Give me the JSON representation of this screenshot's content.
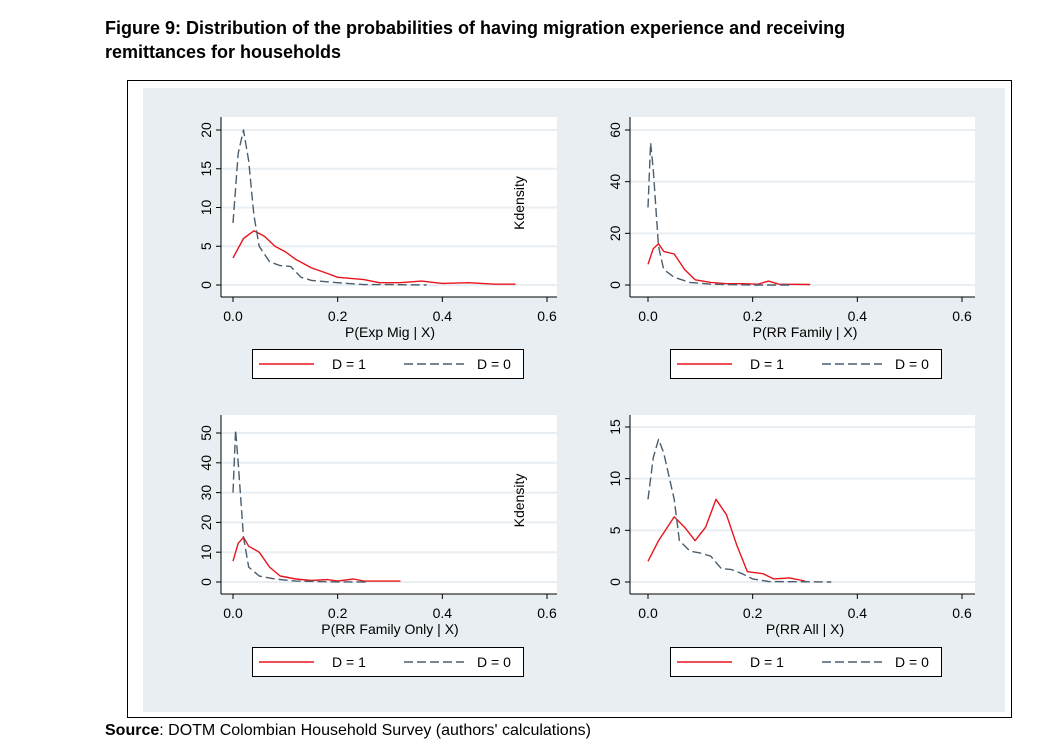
{
  "title_line1": "Figure 9: Distribution of the probabilities of having migration experience and receiving",
  "title_line2": "remittances for households",
  "source_label": "Source",
  "source_text": ": DOTM Colombian Household Survey (authors' calculations)",
  "colors": {
    "d1": "#e8141c",
    "d0": "#4a5e6e",
    "bg": "#e8eef1"
  },
  "chart_data": [
    {
      "type": "line",
      "xlabel": "P(Exp Mig | X)",
      "ylabel": "Kdensity",
      "xlim": [
        0,
        0.6
      ],
      "ylim": [
        0,
        20
      ],
      "xticks": [
        "0.0",
        "0.2",
        "0.4",
        "0.6"
      ],
      "yticks": [
        "0",
        "5",
        "10",
        "15",
        "20"
      ],
      "legend": [
        "D = 1",
        "D = 0"
      ],
      "series": [
        {
          "name": "D = 1",
          "points": [
            [
              0,
              3.5
            ],
            [
              0.02,
              6
            ],
            [
              0.04,
              7
            ],
            [
              0.06,
              6.3
            ],
            [
              0.08,
              5
            ],
            [
              0.1,
              4.3
            ],
            [
              0.12,
              3.3
            ],
            [
              0.15,
              2.2
            ],
            [
              0.18,
              1.5
            ],
            [
              0.2,
              1
            ],
            [
              0.25,
              0.7
            ],
            [
              0.28,
              0.3
            ],
            [
              0.32,
              0.3
            ],
            [
              0.36,
              0.5
            ],
            [
              0.4,
              0.2
            ],
            [
              0.45,
              0.3
            ],
            [
              0.5,
              0.1
            ],
            [
              0.54,
              0.1
            ]
          ]
        },
        {
          "name": "D = 0",
          "points": [
            [
              0,
              8
            ],
            [
              0.01,
              17
            ],
            [
              0.02,
              20
            ],
            [
              0.03,
              16
            ],
            [
              0.04,
              9
            ],
            [
              0.05,
              5
            ],
            [
              0.07,
              3
            ],
            [
              0.09,
              2.5
            ],
            [
              0.11,
              2.4
            ],
            [
              0.13,
              1
            ],
            [
              0.15,
              0.6
            ],
            [
              0.2,
              0.3
            ],
            [
              0.25,
              0.05
            ],
            [
              0.3,
              0.05
            ],
            [
              0.37,
              0
            ]
          ]
        }
      ]
    },
    {
      "type": "line",
      "xlabel": "P(RR Family | X)",
      "ylabel": "",
      "xlim": [
        0,
        0.6
      ],
      "ylim": [
        0,
        60
      ],
      "xticks": [
        "0.0",
        "0.2",
        "0.4",
        "0.6"
      ],
      "yticks": [
        "0",
        "20",
        "40",
        "60"
      ],
      "legend": [
        "D = 1",
        "D = 0"
      ],
      "series": [
        {
          "name": "D = 1",
          "points": [
            [
              0,
              8
            ],
            [
              0.01,
              14
            ],
            [
              0.02,
              16
            ],
            [
              0.03,
              13
            ],
            [
              0.05,
              12
            ],
            [
              0.07,
              6
            ],
            [
              0.09,
              2
            ],
            [
              0.12,
              1
            ],
            [
              0.15,
              0.5
            ],
            [
              0.18,
              0.5
            ],
            [
              0.21,
              0.3
            ],
            [
              0.23,
              1.5
            ],
            [
              0.25,
              0.3
            ],
            [
              0.31,
              0.2
            ]
          ]
        },
        {
          "name": "D = 0",
          "points": [
            [
              0,
              30
            ],
            [
              0.005,
              55
            ],
            [
              0.01,
              45
            ],
            [
              0.02,
              15
            ],
            [
              0.03,
              6
            ],
            [
              0.05,
              3
            ],
            [
              0.08,
              1
            ],
            [
              0.12,
              0.3
            ],
            [
              0.2,
              0
            ],
            [
              0.27,
              0
            ]
          ]
        }
      ]
    },
    {
      "type": "line",
      "xlabel": "P(RR Family Only | X)",
      "ylabel": "Kdensity",
      "xlim": [
        0,
        0.6
      ],
      "ylim": [
        0,
        50
      ],
      "xticks": [
        "0.0",
        "0.2",
        "0.4",
        "0.6"
      ],
      "yticks": [
        "0",
        "10",
        "20",
        "30",
        "40",
        "50"
      ],
      "legend": [
        "D = 1",
        "D = 0"
      ],
      "series": [
        {
          "name": "D = 1",
          "points": [
            [
              0,
              7
            ],
            [
              0.01,
              13
            ],
            [
              0.02,
              15
            ],
            [
              0.03,
              12
            ],
            [
              0.05,
              10
            ],
            [
              0.07,
              5
            ],
            [
              0.09,
              2
            ],
            [
              0.12,
              1
            ],
            [
              0.15,
              0.5
            ],
            [
              0.18,
              0.8
            ],
            [
              0.2,
              0.3
            ],
            [
              0.23,
              1
            ],
            [
              0.25,
              0.3
            ],
            [
              0.32,
              0.3
            ]
          ]
        },
        {
          "name": "D = 0",
          "points": [
            [
              0,
              30
            ],
            [
              0.005,
              51
            ],
            [
              0.01,
              40
            ],
            [
              0.02,
              15
            ],
            [
              0.03,
              5
            ],
            [
              0.05,
              2
            ],
            [
              0.08,
              1
            ],
            [
              0.12,
              0.3
            ],
            [
              0.2,
              0.05
            ],
            [
              0.26,
              0
            ]
          ]
        }
      ]
    },
    {
      "type": "line",
      "xlabel": "P(RR All | X)",
      "ylabel": "",
      "xlim": [
        0,
        0.6
      ],
      "ylim": [
        0,
        15
      ],
      "xticks": [
        "0.0",
        "0.2",
        "0.4",
        "0.6"
      ],
      "yticks": [
        "0",
        "5",
        "10",
        "15"
      ],
      "legend": [
        "D = 1",
        "D = 0"
      ],
      "series": [
        {
          "name": "D = 1",
          "points": [
            [
              0,
              2
            ],
            [
              0.02,
              4
            ],
            [
              0.05,
              6.3
            ],
            [
              0.07,
              5.3
            ],
            [
              0.09,
              4
            ],
            [
              0.11,
              5.3
            ],
            [
              0.13,
              8
            ],
            [
              0.15,
              6.5
            ],
            [
              0.17,
              3.5
            ],
            [
              0.19,
              1
            ],
            [
              0.22,
              0.8
            ],
            [
              0.24,
              0.3
            ],
            [
              0.27,
              0.4
            ],
            [
              0.3,
              0.1
            ]
          ]
        },
        {
          "name": "D = 0",
          "points": [
            [
              0,
              8
            ],
            [
              0.01,
              12
            ],
            [
              0.02,
              13.8
            ],
            [
              0.03,
              12.5
            ],
            [
              0.05,
              8
            ],
            [
              0.06,
              4
            ],
            [
              0.08,
              3
            ],
            [
              0.1,
              2.8
            ],
            [
              0.12,
              2.5
            ],
            [
              0.14,
              1.3
            ],
            [
              0.16,
              1.2
            ],
            [
              0.18,
              0.8
            ],
            [
              0.2,
              0.3
            ],
            [
              0.23,
              0.05
            ],
            [
              0.35,
              0
            ]
          ]
        }
      ]
    }
  ]
}
